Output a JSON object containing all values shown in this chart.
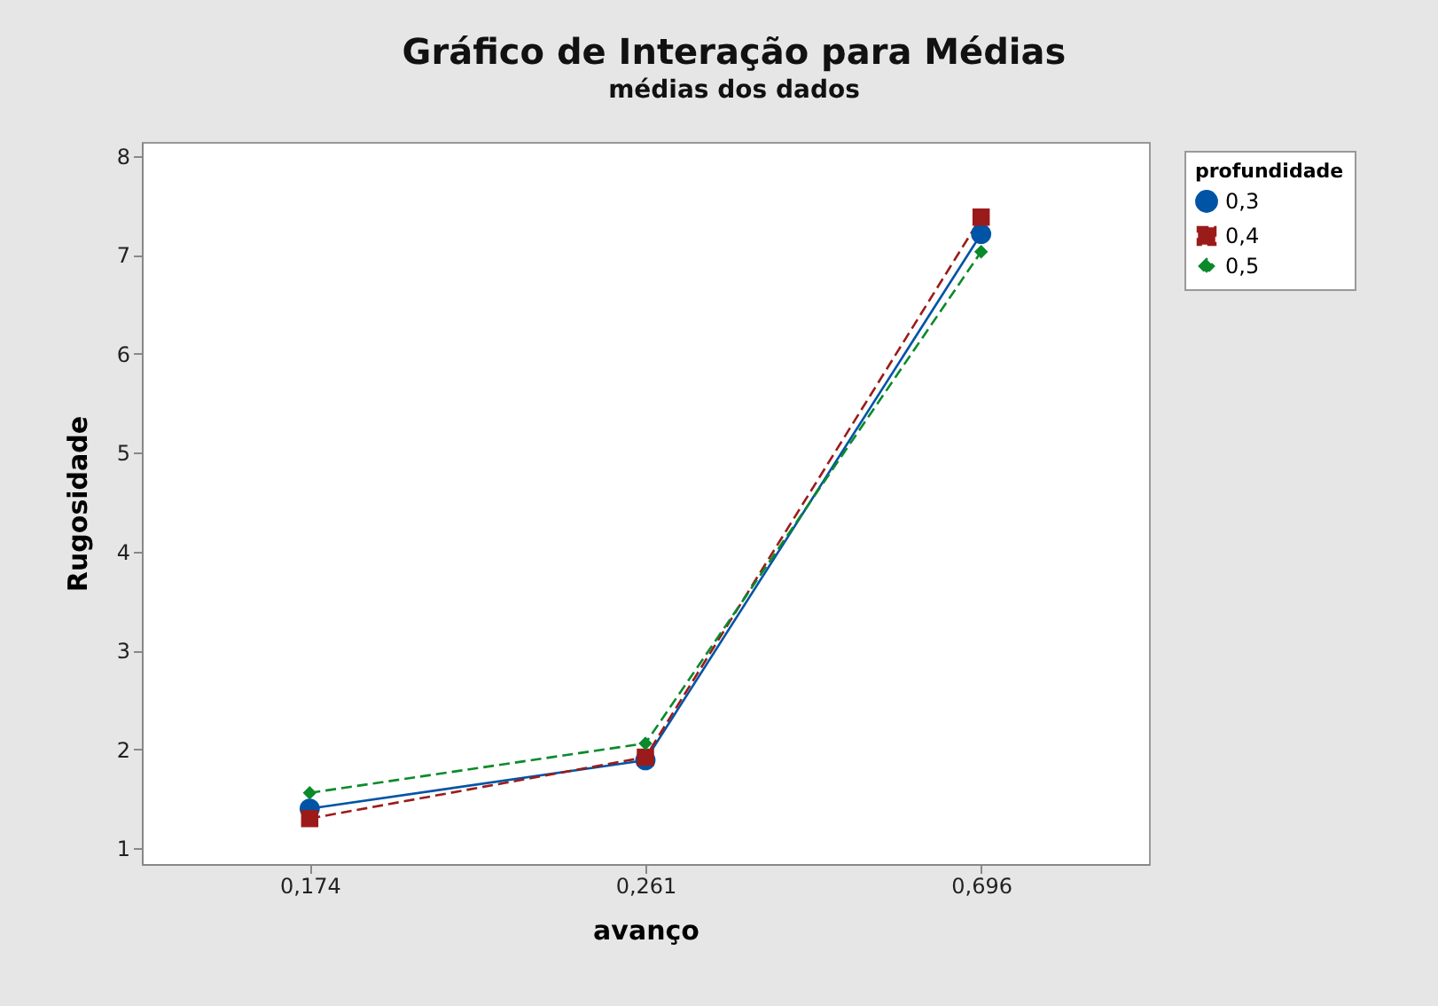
{
  "chart_data": {
    "type": "line",
    "title": "Gráfico de Interação para Médias",
    "subtitle": "médias dos dados",
    "xlabel": "avanço",
    "ylabel": "Rugosidade",
    "legend_title": "profundidade",
    "legend": "right",
    "grid": false,
    "categories": [
      "0,174",
      "0,261",
      "0,696"
    ],
    "ylim": [
      0.84,
      8.14
    ],
    "yticks": [
      1,
      2,
      3,
      4,
      5,
      6,
      7,
      8
    ],
    "series": [
      {
        "name": "0,3",
        "color": "#0054a6",
        "marker": "circle",
        "line_style": "solid",
        "values": [
          1.4,
          1.89,
          7.21
        ]
      },
      {
        "name": "0,4",
        "color": "#9b1b1b",
        "marker": "square",
        "line_style": "dashed",
        "values": [
          1.3,
          1.92,
          7.38
        ]
      },
      {
        "name": "0,5",
        "color": "#0a8a2a",
        "marker": "diamond",
        "line_style": "dashed",
        "values": [
          1.56,
          2.06,
          7.03
        ]
      }
    ]
  }
}
